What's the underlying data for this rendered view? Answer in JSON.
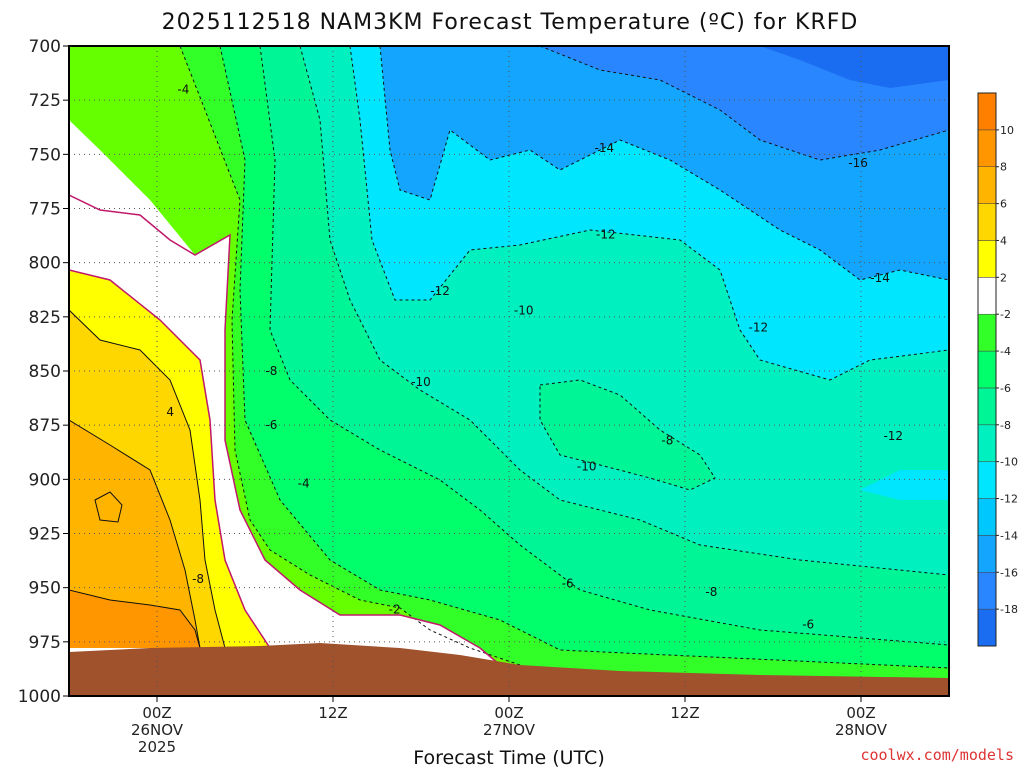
{
  "chart_data": {
    "type": "heatmap",
    "title": "2025112518 NAM3KM Forecast Temperature (ºC) for KRFD",
    "xlabel": "Forecast Time (UTC)",
    "ylabel": "",
    "x_ticks": [
      {
        "hour": 6,
        "lines": [
          "00Z",
          "26NOV",
          "2025"
        ]
      },
      {
        "hour": 18,
        "lines": [
          "12Z"
        ]
      },
      {
        "hour": 30,
        "lines": [
          "00Z",
          "27NOV"
        ]
      },
      {
        "hour": 42,
        "lines": [
          "12Z"
        ]
      },
      {
        "hour": 54,
        "lines": [
          "00Z",
          "28NOV"
        ]
      }
    ],
    "xlim": [
      0,
      60
    ],
    "y_ticks": [
      700,
      725,
      750,
      775,
      800,
      825,
      850,
      875,
      900,
      925,
      950,
      975,
      1000
    ],
    "ylim": [
      700,
      1000
    ],
    "colorbar": {
      "levels": [
        -20,
        -18,
        -16,
        -14,
        -12,
        -10,
        -8,
        -6,
        -4,
        -2,
        2,
        4,
        6,
        8,
        10,
        12
      ],
      "tick_labels": [
        "10",
        "8",
        "6",
        "4",
        "2",
        "-2",
        "-4",
        "-6",
        "-8",
        "-10",
        "-12",
        "-14",
        "-16",
        "-18"
      ],
      "tick_values": [
        10,
        8,
        6,
        4,
        2,
        -2,
        -4,
        -6,
        -8,
        -10,
        -12,
        -14,
        -16,
        -18
      ],
      "colors": {
        "-20": "#1a6cf0",
        "-18": "#2a86ff",
        "-16": "#14a5ff",
        "-14": "#00c8ff",
        "-12": "#00e6ff",
        "-10": "#00f0c0",
        "-8": "#00f596",
        "-6": "#00ff6a",
        "-4": "#33ff28",
        "-2": "#66ff00",
        "0": "#ffffff",
        "2": "#ffff00",
        "4": "#ffd700",
        "6": "#ffb400",
        "8": "#ff9600",
        "10": "#ff8000"
      }
    },
    "grid": true,
    "ground_color": "#a0522d",
    "contour_labels": [
      {
        "text": "-4",
        "hour": 7.8,
        "p": 720
      },
      {
        "text": "-14",
        "hour": 36.5,
        "p": 747
      },
      {
        "text": "-16",
        "hour": 53.8,
        "p": 754
      },
      {
        "text": "-12",
        "hour": 36.6,
        "p": 787
      },
      {
        "text": "-14",
        "hour": 55.3,
        "p": 807
      },
      {
        "text": "-12",
        "hour": 25.3,
        "p": 813
      },
      {
        "text": "-10",
        "hour": 31.0,
        "p": 822
      },
      {
        "text": "-12",
        "hour": 47.0,
        "p": 830
      },
      {
        "text": "-8",
        "hour": 13.8,
        "p": 850
      },
      {
        "text": "-10",
        "hour": 24.0,
        "p": 855
      },
      {
        "text": "4",
        "hour": 6.9,
        "p": 869
      },
      {
        "text": "-6",
        "hour": 13.8,
        "p": 875
      },
      {
        "text": "-8",
        "hour": 40.8,
        "p": 882
      },
      {
        "text": "-12",
        "hour": 56.2,
        "p": 880
      },
      {
        "text": "-10",
        "hour": 35.3,
        "p": 894
      },
      {
        "text": "-4",
        "hour": 16.0,
        "p": 902
      },
      {
        "text": "-8",
        "hour": 8.8,
        "p": 946
      },
      {
        "text": "-6",
        "hour": 34.0,
        "p": 948
      },
      {
        "text": "-8",
        "hour": 43.8,
        "p": 952
      },
      {
        "text": "-2",
        "hour": 22.2,
        "p": 960
      },
      {
        "text": "-6",
        "hour": 50.4,
        "p": 967
      }
    ]
  },
  "credit": "coolwx.com/models"
}
